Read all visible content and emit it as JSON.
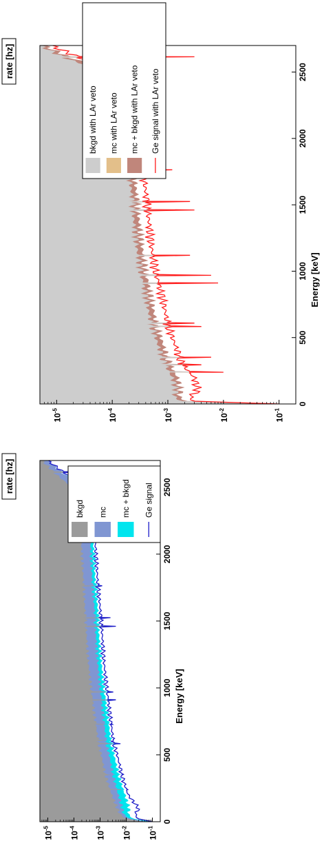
{
  "chart_data": [
    {
      "type": "area",
      "ylabel": "rate [hz]",
      "xlabel": "Energy [keV]",
      "yscale": "log",
      "ylim": [
        5e-06,
        0.2
      ],
      "xlim": [
        0,
        2700
      ],
      "x_ticks": [
        "0",
        "500",
        "1000",
        "1500",
        "2000",
        "2500"
      ],
      "y_ticks": [
        {
          "value": 0.1,
          "base": "10",
          "exp": "-1"
        },
        {
          "value": 0.01,
          "base": "10",
          "exp": "-2"
        },
        {
          "value": 0.001,
          "base": "10",
          "exp": "-3"
        },
        {
          "value": 0.0001,
          "base": "10",
          "exp": "-4"
        },
        {
          "value": 1e-05,
          "base": "10",
          "exp": "-5"
        }
      ],
      "legend_position": "top-right",
      "series": [
        {
          "name": "Ge signal",
          "style": "line",
          "color": "#1a1ac8"
        },
        {
          "name": "mc + bkgd",
          "style": "area",
          "color": "#00e5ee"
        },
        {
          "name": "mc",
          "style": "area",
          "color": "#8096d2"
        },
        {
          "name": "bkgd",
          "style": "area",
          "color": "#9b9b9b"
        }
      ],
      "x": [
        0,
        20,
        50,
        100,
        200,
        300,
        400,
        500,
        600,
        800,
        1000,
        1200,
        1400,
        1600,
        1800,
        2000,
        2200,
        2400,
        2500,
        2600,
        2700
      ],
      "curves": {
        "Ge signal": [
          0.1,
          0.03,
          0.022,
          0.03,
          0.012,
          0.008,
          0.006,
          0.0045,
          0.0032,
          0.0024,
          0.0018,
          0.0014,
          0.0012,
          0.001,
          0.0008,
          0.0007,
          0.0006,
          0.0005,
          0.00025,
          5e-05,
          1e-05
        ],
        "mc + bkgd": [
          0.08,
          0.02,
          0.012,
          0.013,
          0.009,
          0.006,
          0.0045,
          0.0034,
          0.0026,
          0.0019,
          0.0014,
          0.0011,
          0.0009,
          0.0008,
          0.00065,
          0.00058,
          0.0005,
          0.0004,
          0.0002,
          4e-05,
          1e-05
        ],
        "mc": [
          0.06,
          0.015,
          0.008,
          0.007,
          0.005,
          0.0036,
          0.0028,
          0.0022,
          0.0017,
          0.0013,
          0.001,
          0.0008,
          0.00068,
          0.0006,
          0.0005,
          0.00045,
          0.0004,
          0.00035,
          0.00018,
          4e-05,
          1e-05
        ],
        "bkgd": [
          0.04,
          0.011,
          0.006,
          0.0045,
          0.0028,
          0.0019,
          0.0014,
          0.0011,
          0.00085,
          0.0006,
          0.00045,
          0.00035,
          0.0003,
          0.00026,
          0.00023,
          0.0002,
          0.00018,
          0.00016,
          8e-05,
          2e-05,
          6e-06
        ]
      },
      "peaks": [
        {
          "energy": 239,
          "height": 0.012
        },
        {
          "energy": 352,
          "height": 0.005
        },
        {
          "energy": 583,
          "height": 0.006
        },
        {
          "energy": 609,
          "height": 0.003
        },
        {
          "energy": 727,
          "height": 0.003
        },
        {
          "energy": 911,
          "height": 0.004
        },
        {
          "energy": 969,
          "height": 0.0032
        },
        {
          "energy": 1461,
          "height": 0.004
        },
        {
          "energy": 1525,
          "height": 0.0025
        },
        {
          "energy": 1764,
          "height": 0.0012
        },
        {
          "energy": 2204,
          "height": 0.0008
        },
        {
          "energy": 2615,
          "height": 0.004
        }
      ]
    },
    {
      "type": "area",
      "ylabel": "rate [hz]",
      "xlabel": "Energy [keV]",
      "yscale": "log",
      "ylim": [
        5e-06,
        0.2
      ],
      "xlim": [
        0,
        2700
      ],
      "x_ticks": [
        "0",
        "500",
        "1000",
        "1500",
        "2000",
        "2500"
      ],
      "y_ticks": [
        {
          "value": 0.1,
          "base": "10",
          "exp": "-1"
        },
        {
          "value": 0.01,
          "base": "10",
          "exp": "-2"
        },
        {
          "value": 0.001,
          "base": "10",
          "exp": "-3"
        },
        {
          "value": 0.0001,
          "base": "10",
          "exp": "-4"
        },
        {
          "value": 1e-05,
          "base": "10",
          "exp": "-5"
        }
      ],
      "legend_position": "top-right",
      "series": [
        {
          "name": "Ge signal with LAr veto",
          "style": "line",
          "color": "#ff1a1a"
        },
        {
          "name": "mc + bkgd with LAr veto",
          "style": "area",
          "color": "#c0867b"
        },
        {
          "name": "mc with LAr veto",
          "style": "area",
          "color": "#e3bf8a"
        },
        {
          "name": "bkgd with LAr veto",
          "style": "area",
          "color": "#cdcdcd"
        }
      ],
      "x": [
        0,
        20,
        50,
        100,
        200,
        300,
        400,
        500,
        600,
        800,
        1000,
        1200,
        1400,
        1600,
        1800,
        2000,
        2200,
        2400,
        2500,
        2600,
        2700
      ],
      "curves": {
        "Ge signal with LAr veto": [
          0.1,
          0.003,
          0.0025,
          0.0035,
          0.003,
          0.0018,
          0.0015,
          0.0012,
          0.001,
          0.0008,
          0.0006,
          0.0005,
          0.00045,
          0.0004,
          0.00035,
          0.0003,
          0.00028,
          0.00025,
          0.00015,
          3e-05,
          8e-06
        ],
        "mc + bkgd with LAr veto": [
          0.09,
          0.0022,
          0.0016,
          0.0017,
          0.0015,
          0.0011,
          0.0009,
          0.00075,
          0.00062,
          0.0005,
          0.0004,
          0.00034,
          0.0003,
          0.00027,
          0.00024,
          0.00021,
          0.00019,
          0.00017,
          0.0001,
          2e-05,
          6e-06
        ],
        "mc with LAr veto": [
          0.04,
          0.0005,
          0.00045,
          0.00042,
          0.00036,
          0.00031,
          0.00027,
          0.00024,
          0.00021,
          0.00017,
          0.00014,
          0.00012,
          0.0001,
          9e-05,
          8e-05,
          7e-05,
          6.5e-05,
          6e-05,
          4e-05,
          1e-05,
          5e-06
        ],
        "bkgd with LAr veto": [
          0.06,
          0.0018,
          0.0013,
          0.0014,
          0.0012,
          0.00088,
          0.00072,
          0.0006,
          0.0005,
          0.0004,
          0.00032,
          0.00027,
          0.00024,
          0.00022,
          0.00019,
          0.00017,
          0.00015,
          0.00013,
          8e-05,
          1.5e-05,
          5e-06
        ]
      },
      "peaks": [
        {
          "energy": 239,
          "height": 0.01
        },
        {
          "energy": 295,
          "height": 0.004
        },
        {
          "energy": 352,
          "height": 0.006
        },
        {
          "energy": 583,
          "height": 0.004
        },
        {
          "energy": 609,
          "height": 0.003
        },
        {
          "energy": 911,
          "height": 0.008
        },
        {
          "energy": 969,
          "height": 0.006
        },
        {
          "energy": 1120,
          "height": 0.0025
        },
        {
          "energy": 1461,
          "height": 0.003
        },
        {
          "energy": 1525,
          "height": 0.0025
        },
        {
          "energy": 1764,
          "height": 0.0012
        },
        {
          "energy": 2204,
          "height": 0.0008
        },
        {
          "energy": 2615,
          "height": 0.003
        }
      ]
    }
  ]
}
